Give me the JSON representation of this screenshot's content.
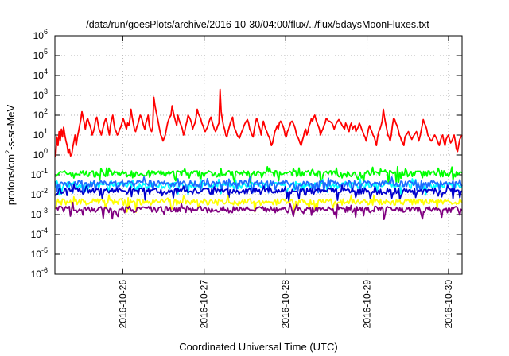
{
  "chart_data": {
    "type": "line",
    "title": "/data/run/goesPlots/archive/2016-10-30/04:00/flux/../flux/5daysMoonFluxes.txt",
    "xlabel": "Coordinated Universal Time (UTC)",
    "ylabel_parts": {
      "base": "protons/cm",
      "sup": "2",
      "rest": "-s-sr-MeV"
    },
    "yscale": "log",
    "ylim_exp": [
      -6,
      6
    ],
    "y_ticks": [
      {
        "base": "10",
        "exp": "6"
      },
      {
        "base": "10",
        "exp": "5"
      },
      {
        "base": "10",
        "exp": "4"
      },
      {
        "base": "10",
        "exp": "3"
      },
      {
        "base": "10",
        "exp": "2"
      },
      {
        "base": "10",
        "exp": "1"
      },
      {
        "base": "10",
        "exp": "0"
      },
      {
        "base": "10",
        "exp": "-1"
      },
      {
        "base": "10",
        "exp": "-2"
      },
      {
        "base": "10",
        "exp": "-3"
      },
      {
        "base": "10",
        "exp": "-4"
      },
      {
        "base": "10",
        "exp": "-5"
      },
      {
        "base": "10",
        "exp": "-6"
      }
    ],
    "x_range": [
      "2016-10-25 04:00",
      "2016-10-30 04:00"
    ],
    "x_ticks": [
      "2016-10-26",
      "2016-10-27",
      "2016-10-28",
      "2016-10-29",
      "2016-10-30"
    ],
    "grid": true,
    "series": [
      {
        "color": "#ff0000",
        "base": 10,
        "values": [
          0.8,
          8,
          3,
          15,
          5,
          20,
          8,
          25,
          10,
          5,
          3,
          1.2,
          2,
          0.9,
          1,
          2.5,
          5,
          10,
          3,
          8,
          15,
          30,
          60,
          150,
          80,
          40,
          20,
          50,
          70,
          45,
          30,
          20,
          10,
          15,
          25,
          60,
          80,
          40,
          20,
          15,
          10,
          18,
          30,
          50,
          70,
          40,
          20,
          10,
          30,
          60,
          100,
          40,
          20,
          15,
          10,
          12,
          20,
          25,
          40,
          70,
          50,
          30,
          20,
          40,
          30,
          60,
          200,
          80,
          40,
          20,
          15,
          25,
          35,
          60,
          100,
          80,
          50,
          30,
          20,
          40,
          60,
          100,
          30,
          20,
          15,
          25,
          800,
          300,
          150,
          80,
          40,
          20,
          10,
          8,
          5,
          7,
          10,
          20,
          40,
          60,
          80,
          100,
          300,
          150,
          80,
          50,
          30,
          100,
          60,
          40,
          30,
          20,
          10,
          15,
          30,
          50,
          100,
          80,
          60,
          40,
          20,
          30,
          40,
          80,
          200,
          120,
          90,
          70,
          40,
          30,
          20,
          15,
          20,
          25,
          40,
          60,
          80,
          50,
          30,
          20,
          15,
          20,
          30,
          40,
          2000,
          150,
          60,
          30,
          20,
          10,
          8,
          15,
          25,
          40,
          60,
          80,
          30,
          20,
          15,
          10,
          8,
          7,
          10,
          15,
          20,
          30,
          40,
          50,
          60,
          40,
          20,
          15,
          10,
          8,
          20,
          40,
          70,
          50,
          30,
          20,
          10,
          25,
          50,
          30,
          20,
          15,
          10,
          8,
          5,
          3,
          4,
          8,
          15,
          20,
          30,
          20,
          40,
          50,
          40,
          30,
          20,
          10,
          8,
          15,
          20,
          30,
          45,
          50,
          40,
          30,
          20,
          10,
          8,
          6,
          4,
          3,
          5,
          8,
          15,
          20,
          10,
          15,
          30,
          40,
          70,
          50,
          80,
          100,
          60,
          40,
          30,
          20,
          10,
          15,
          20,
          30,
          40,
          70,
          60,
          50,
          50,
          45,
          40,
          30,
          20,
          30,
          40,
          50,
          60,
          50,
          40,
          30,
          25,
          20,
          40,
          30,
          20,
          15,
          30,
          40,
          20,
          25,
          30,
          15,
          20,
          25,
          40,
          30,
          20,
          15,
          10,
          8,
          5,
          10,
          20,
          30,
          20,
          15,
          10,
          8,
          5,
          3,
          8,
          15,
          20,
          30,
          50,
          200,
          80,
          40,
          20,
          10,
          8,
          5,
          10,
          30,
          70,
          60,
          40,
          30,
          20,
          10,
          8,
          5,
          4,
          3,
          8,
          10,
          12,
          15,
          10,
          8,
          6,
          8,
          10,
          12,
          15,
          10,
          5,
          8,
          15,
          30,
          60,
          40,
          30,
          20,
          10,
          8,
          6,
          5,
          6,
          8,
          10,
          8,
          6,
          4,
          3,
          5,
          8,
          10,
          5,
          3,
          6,
          8,
          10,
          6,
          4,
          5,
          7,
          10,
          5,
          2,
          1.5,
          3,
          6,
          8,
          10
        ]
      },
      {
        "color": "#00ff00",
        "base": 0.12,
        "values": []
      },
      {
        "color": "#00ffff",
        "base": 0.03,
        "values": []
      },
      {
        "color": "#1e6bff",
        "base": 0.038,
        "values": []
      },
      {
        "color": "#0000cd",
        "base": 0.016,
        "values": []
      },
      {
        "color": "#ffff00",
        "base": 0.0045,
        "values": []
      },
      {
        "color": "#800080",
        "base": 0.0019,
        "values": []
      }
    ]
  }
}
